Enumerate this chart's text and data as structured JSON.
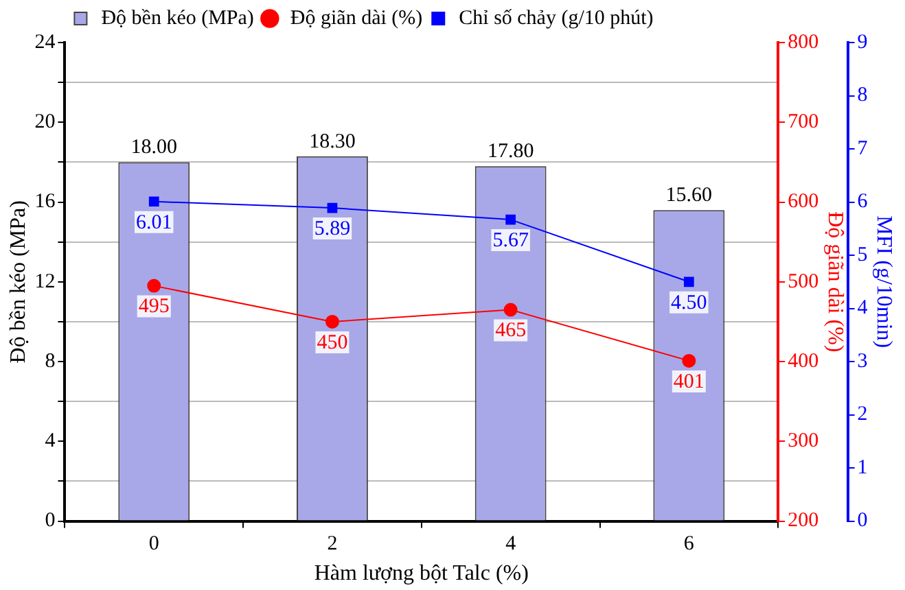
{
  "chart_data": {
    "type": "bar",
    "xlabel": "Hàm lượng bột Talc (%)",
    "ylabel": "Độ bền kéo (MPa)",
    "y2label": "Độ giãn dài (%)",
    "y3label": "MFI (g/10min)",
    "categories": [
      "0",
      "2",
      "4",
      "6"
    ],
    "series": [
      {
        "name": "Độ bền kéo (MPa)",
        "color": "#a8a8e8",
        "values": [
          18.0,
          18.3,
          17.8,
          15.6
        ],
        "value_labels": [
          "18.00",
          "18.30",
          "17.80",
          "15.60"
        ]
      },
      {
        "name": "Độ giãn dài (%)",
        "type": "line",
        "axis": "y2",
        "color": "#ff0000",
        "marker": "circle",
        "values": [
          495,
          450,
          465,
          401
        ],
        "value_labels": [
          "495",
          "450",
          "465",
          "401"
        ]
      },
      {
        "name": "Chỉ số chảy (g/10 phút)",
        "type": "line",
        "axis": "y3",
        "color": "#0000ff",
        "marker": "square",
        "values": [
          6.01,
          5.89,
          5.67,
          4.5
        ],
        "value_labels": [
          "6.01",
          "5.89",
          "5.67",
          "4.50"
        ]
      }
    ],
    "ylim": [
      0,
      24
    ],
    "yticks": [
      0,
      {
        "value": 2,
        "label": null
      },
      4,
      {
        "value": 6,
        "label": null
      },
      8,
      {
        "value": 10,
        "label": null
      },
      12,
      {
        "value": 14,
        "label": null
      },
      16,
      {
        "value": 18,
        "label": null
      },
      20,
      {
        "value": 22,
        "label": null
      },
      24
    ],
    "y2lim": [
      200,
      800
    ],
    "y2ticks": [
      200,
      300,
      400,
      500,
      600,
      700,
      800
    ],
    "y3lim": [
      0,
      9
    ],
    "y3ticks": [
      0,
      1,
      2,
      3,
      4,
      5,
      6,
      7,
      8,
      9
    ],
    "grid": "y",
    "legend": "top left"
  }
}
